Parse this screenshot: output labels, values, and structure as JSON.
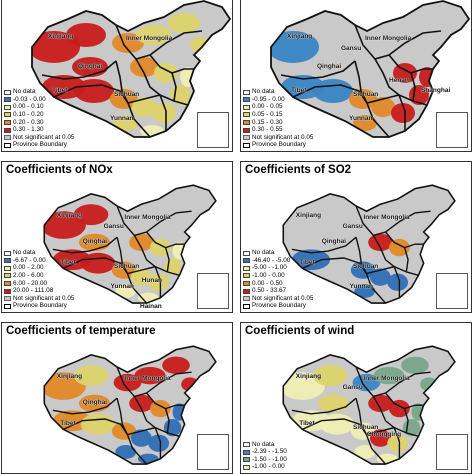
{
  "panels": [
    {
      "id": "p1",
      "title": "",
      "palette": [
        "#3b6fb0",
        "#f1efb5",
        "#ddd36a",
        "#e28a2a",
        "#c81c1c"
      ],
      "legend": {
        "no_data": "No data",
        "classes": [
          "-0.03 - 0.00",
          "0.00 - 0.10",
          "0.10 - 0.20",
          "0.20 - 0.30",
          "0.30 - 1.30"
        ],
        "not_significant": "Not significant at 0.05",
        "boundary": "Province Boundary"
      },
      "provinces": [
        "Xinjiang",
        "Inner Mongolia",
        "Qinghai",
        "Tibet",
        "Sichuan",
        "Yunnan"
      ]
    },
    {
      "id": "p2",
      "title": "",
      "palette": [
        "#3a86c4",
        "#f1efb5",
        "#ddd36a",
        "#e28a2a",
        "#c81c1c"
      ],
      "legend": {
        "no_data": "No data",
        "classes": [
          "-0.95 - 0.00",
          "0.00 - 0.05",
          "0.05 - 0.15",
          "0.15 - 0.30",
          "0.30 - 0.55"
        ],
        "not_significant": "Not significant at 0.05",
        "boundary": "Province Boundary"
      },
      "provinces": [
        "Xinjiang",
        "Gansu",
        "Inner Mongolia",
        "Qinghai",
        "Tibet",
        "Sichuan",
        "Yunnan",
        "Henan",
        "Shanghai"
      ]
    },
    {
      "id": "p3",
      "title": "Coefficients of NOx",
      "palette": [
        "#3b6fb0",
        "#f1efb5",
        "#ddd36a",
        "#e28a2a",
        "#c81c1c"
      ],
      "legend": {
        "no_data": "No data",
        "classes": [
          "-6.67 - 0.00",
          "0.00 - 2.00",
          "2.00 - 6.00",
          "6.00 - 20.00",
          "20.00 - 111.08"
        ],
        "not_significant": "Not significant at 0.05",
        "boundary": "Province Boundary"
      },
      "provinces": [
        "Xinjiang",
        "Gansu",
        "Inner Mongolia",
        "Qinghai",
        "Tibet",
        "Sichuan",
        "Yunnan",
        "Hunan",
        "Hainan"
      ]
    },
    {
      "id": "p4",
      "title": "Coefficients of SO2",
      "palette": [
        "#2f6fb5",
        "#f1efb5",
        "#ddd36a",
        "#e28a2a",
        "#c81c1c"
      ],
      "legend": {
        "no_data": "No data",
        "classes": [
          "-46.40 - -5.00",
          "-5.00 - -1.00",
          "-1.00 - 0.00",
          "0.00 - 0.50",
          "0.50 - 33.67"
        ],
        "not_significant": "Not significant at 0.05",
        "boundary": "Province Boundary"
      },
      "provinces": [
        "Xinjiang",
        "Gansu",
        "Inner Mongolia",
        "Qinghai",
        "Tibet",
        "Sichuan",
        "Yunnan"
      ]
    },
    {
      "id": "p5",
      "title": "Coefficients of temperature",
      "palette": [
        "#2f6fb5",
        "#f1efb5",
        "#ddd36a",
        "#e28a2a",
        "#c81c1c"
      ],
      "legend": null,
      "provinces": [
        "Xinjiang",
        "Inner Mongolia",
        "Qinghai",
        "Tibet"
      ]
    },
    {
      "id": "p6",
      "title": "Coefficients of wind",
      "palette": [
        "#3a86c4",
        "#7aa68a",
        "#f1efb5",
        "#ddd36a",
        "#c81c1c"
      ],
      "legend": {
        "no_data": "No data",
        "classes": [
          "-2.39 - -1.50",
          "-1.50 - -1.00",
          "-1.00 - 0.00"
        ]
      },
      "provinces": [
        "Xinjiang",
        "Gansu",
        "Inner Mongolia",
        "Tibet",
        "Sichuan",
        "Chongqing"
      ]
    }
  ]
}
